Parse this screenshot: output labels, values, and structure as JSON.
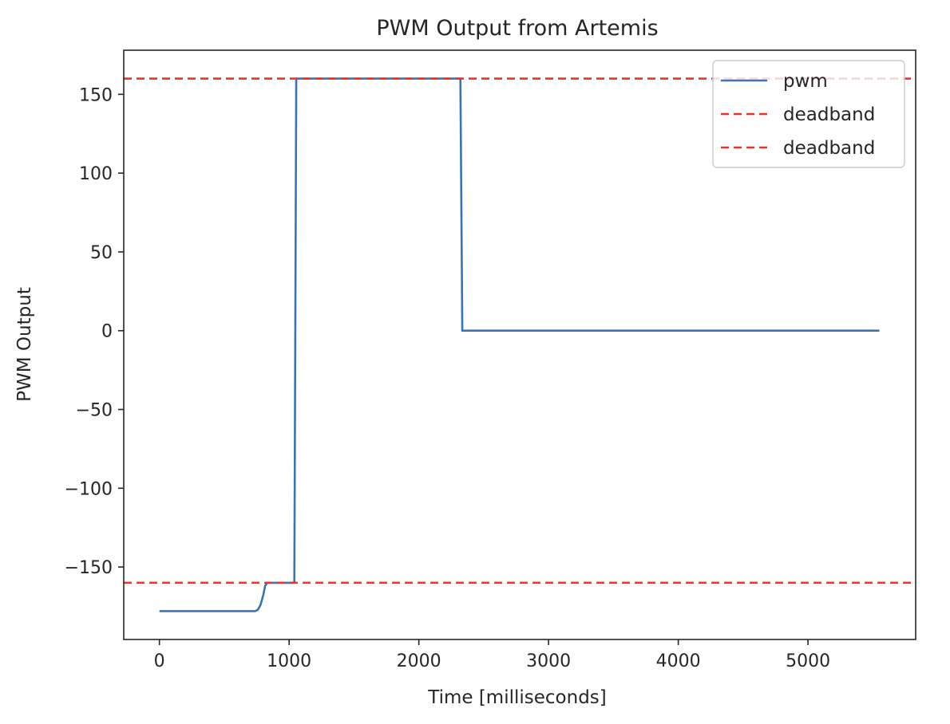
{
  "chart_data": {
    "type": "line",
    "title": "PWM Output from Artemis",
    "xlabel": "Time [milliseconds]",
    "ylabel": "PWM Output",
    "xlim": [
      -275,
      5830
    ],
    "ylim": [
      -196,
      178
    ],
    "xticks": [
      0,
      1000,
      2000,
      3000,
      4000,
      5000
    ],
    "xtick_labels": [
      "0",
      "1000",
      "2000",
      "3000",
      "4000",
      "5000"
    ],
    "yticks": [
      150,
      100,
      50,
      0,
      -50,
      -100,
      -150
    ],
    "ytick_labels": [
      "150",
      "100",
      "50",
      "0",
      "−50",
      "−100",
      "−150"
    ],
    "grid": false,
    "legend_position": "top-right",
    "series": [
      {
        "name": "pwm",
        "style": "solid",
        "color": "#3a75b0",
        "x": [
          0,
          740,
          760,
          780,
          800,
          815,
          830,
          845,
          1040,
          1055,
          2320,
          2335,
          5550
        ],
        "y": [
          -178,
          -178,
          -177,
          -174,
          -168,
          -162,
          -160,
          -160,
          -160,
          160,
          160,
          0,
          0
        ]
      },
      {
        "name": "deadband",
        "style": "dashed",
        "color": "#e8342a",
        "hline": 160
      },
      {
        "name": "deadband",
        "style": "dashed",
        "color": "#e8342a",
        "hline": -160
      }
    ]
  }
}
